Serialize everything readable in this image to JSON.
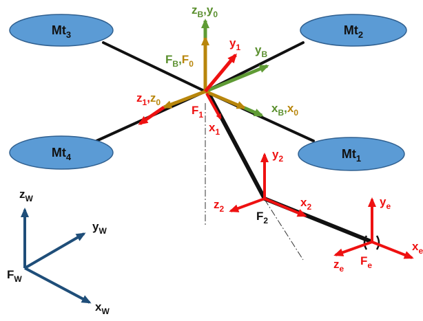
{
  "colors": {
    "red": "#ee1111",
    "gold": "#b8860b",
    "green": "#5f9b35",
    "navy": "#1f4e79",
    "motor_fill": "#5b9bd5",
    "motor_stroke": "#2f5f8f",
    "arm": "#111111"
  },
  "motors": [
    {
      "name": "Mt",
      "sub": "3"
    },
    {
      "name": "Mt",
      "sub": "2"
    },
    {
      "name": "Mt",
      "sub": "4"
    },
    {
      "name": "Mt",
      "sub": "1"
    }
  ],
  "frames": {
    "base_frame": {
      "label": "F",
      "sub": "B",
      "sep": ",",
      "label2": "F",
      "sub2": "0",
      "axes": [
        {
          "name": "z",
          "sub": "B",
          "sep": ",",
          "name2": "y",
          "sub2": "0"
        },
        {
          "name": "y",
          "sub": "B"
        },
        {
          "name": "x",
          "sub": "B",
          "sep": ",",
          "name2": "x",
          "sub2": "0"
        },
        {
          "name": "z",
          "sub": "1",
          "sep": ",",
          "name2": "z",
          "sub2": "0"
        }
      ]
    },
    "frame1": {
      "label": "F",
      "sub": "1",
      "axes": [
        {
          "name": "y",
          "sub": "1"
        },
        {
          "name": "x",
          "sub": "1"
        }
      ]
    },
    "frame2": {
      "label": "F",
      "sub": "2",
      "axes": [
        {
          "name": "y",
          "sub": "2"
        },
        {
          "name": "x",
          "sub": "2"
        },
        {
          "name": "z",
          "sub": "2"
        }
      ]
    },
    "end_effector": {
      "label": "F",
      "sub": "e",
      "axes": [
        {
          "name": "y",
          "sub": "e"
        },
        {
          "name": "x",
          "sub": "e"
        },
        {
          "name": "z",
          "sub": "e"
        }
      ]
    },
    "world": {
      "label": "F",
      "sub": "W",
      "axes": [
        {
          "name": "z",
          "sub": "W"
        },
        {
          "name": "y",
          "sub": "W"
        },
        {
          "name": "x",
          "sub": "W"
        }
      ]
    }
  }
}
